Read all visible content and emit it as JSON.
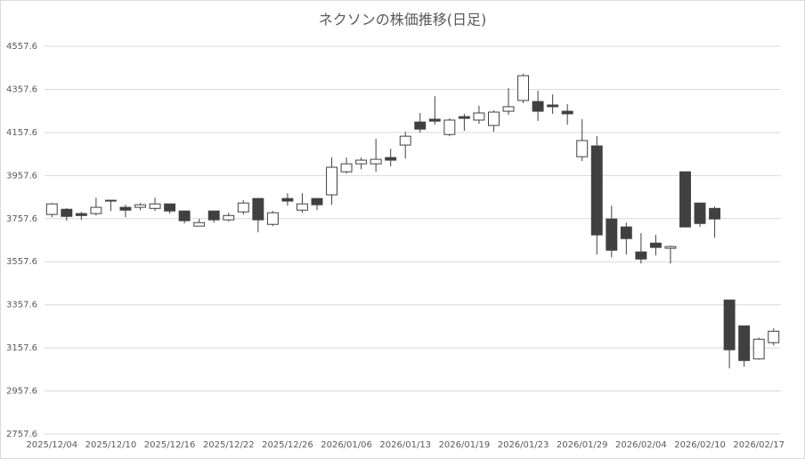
{
  "chart_data": {
    "type": "candlestick",
    "title": "ネクソンの株価推移(日足)",
    "categories": [
      "2025/12/04",
      null,
      null,
      null,
      "2025/12/10",
      null,
      null,
      null,
      "2025/12/16",
      null,
      null,
      null,
      "2025/12/22",
      null,
      null,
      null,
      "2025/12/26",
      null,
      null,
      null,
      "2026/01/06",
      null,
      null,
      null,
      "2026/01/13",
      null,
      null,
      null,
      "2026/01/19",
      null,
      null,
      null,
      "2026/01/23",
      null,
      null,
      null,
      "2026/01/29",
      null,
      null,
      null,
      "2026/02/04",
      null,
      null,
      null,
      "2026/02/10",
      null,
      null,
      null,
      "2026/02/17",
      null
    ],
    "open": [
      3777,
      3801,
      3781,
      3781,
      3843,
      3810,
      3810,
      3805,
      3826,
      3793,
      3723,
      3793,
      3752,
      3789,
      3851,
      3731,
      3851,
      3797,
      3851,
      3868,
      3975,
      4012,
      4012,
      4041,
      4099,
      4206,
      4219,
      4148,
      4231,
      4215,
      4190,
      4256,
      4306,
      4301,
      4285,
      4256,
      4045,
      4095,
      3756,
      3719,
      3603,
      3644,
      3620,
      3975,
      3830,
      3805,
      3380,
      3260,
      3107,
      3182
    ],
    "high": [
      3830,
      3806,
      3789,
      3855,
      3843,
      3822,
      3830,
      3855,
      3826,
      3793,
      3756,
      3793,
      3785,
      3843,
      3851,
      3793,
      3876,
      3876,
      3851,
      4041,
      4041,
      4041,
      4128,
      4082,
      4161,
      4248,
      4326,
      4223,
      4244,
      4281,
      4260,
      4363,
      4430,
      4351,
      4334,
      4289,
      4219,
      4140,
      3818,
      3739,
      3690,
      3682,
      3632,
      3975,
      3830,
      3814,
      3380,
      3260,
      3206,
      3248
    ],
    "low": [
      3764,
      3748,
      3752,
      3772,
      3793,
      3764,
      3797,
      3793,
      3781,
      3735,
      3723,
      3739,
      3744,
      3776,
      3694,
      3723,
      3818,
      3785,
      3797,
      3822,
      3967,
      3987,
      3975,
      4000,
      4037,
      4157,
      4194,
      4140,
      4165,
      4198,
      4161,
      4239,
      4293,
      4211,
      4244,
      4194,
      4025,
      3591,
      3578,
      3591,
      3549,
      3587,
      3549,
      3719,
      3719,
      3669,
      3062,
      3070,
      3103,
      3169
    ],
    "close": [
      3826,
      3768,
      3772,
      3810,
      3839,
      3797,
      3822,
      3826,
      3793,
      3748,
      3739,
      3752,
      3772,
      3830,
      3752,
      3785,
      3839,
      3826,
      3822,
      3996,
      4012,
      4029,
      4033,
      4029,
      4140,
      4173,
      4210,
      4215,
      4223,
      4248,
      4252,
      4277,
      4421,
      4256,
      4277,
      4244,
      4120,
      3682,
      3611,
      3665,
      3570,
      3624,
      3628,
      3719,
      3735,
      3756,
      3149,
      3099,
      3198,
      3235
    ],
    "up_color": "#ffffff",
    "down_color": "#404040",
    "edge_color": "#404040",
    "ylim": [
      2757.6,
      4557.6
    ],
    "yticks": [
      2757.6,
      2957.6,
      3157.6,
      3357.6,
      3557.6,
      3757.6,
      3957.6,
      4157.6,
      4357.6,
      4557.6
    ],
    "grid": true
  }
}
